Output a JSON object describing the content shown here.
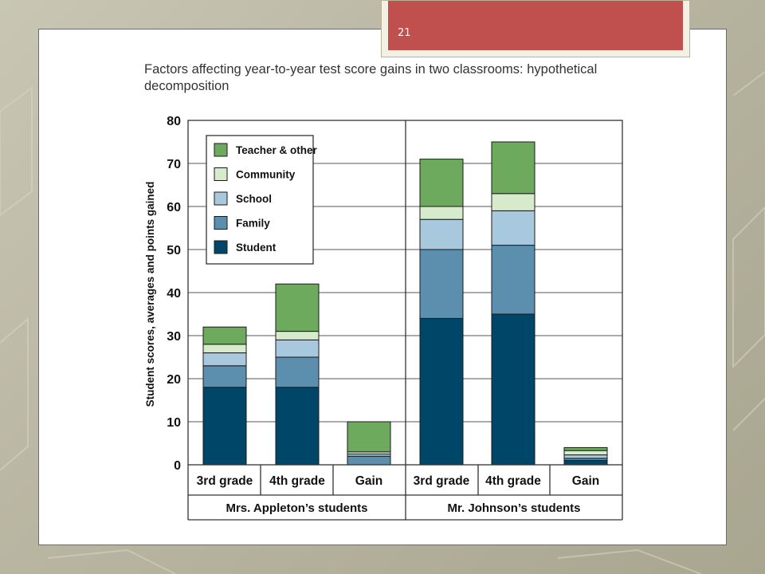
{
  "slide": {
    "page_number": "21"
  },
  "chart_data": {
    "type": "bar",
    "stacked": true,
    "title": "Factors affecting year-to-year test score gains in two classrooms: hypothetical decomposition",
    "ylabel": "Student scores, averages and points gained",
    "ylim": [
      0,
      80
    ],
    "yticks": [
      0,
      10,
      20,
      30,
      40,
      50,
      60,
      70,
      80
    ],
    "grid": true,
    "legend_position": "top-left",
    "categories": [
      "3rd grade",
      "4th grade",
      "Gain",
      "3rd grade",
      "4th grade",
      "Gain"
    ],
    "groups": [
      {
        "label": "Mrs. Appleton’s students",
        "categories": [
          "3rd grade",
          "4th grade",
          "Gain"
        ]
      },
      {
        "label": "Mr. Johnson’s students",
        "categories": [
          "3rd grade",
          "4th grade",
          "Gain"
        ]
      }
    ],
    "series": [
      {
        "name": "Student",
        "color": "#004669",
        "values": [
          18,
          18,
          0,
          34,
          35,
          1
        ]
      },
      {
        "name": "Family",
        "color": "#5b8fad",
        "values": [
          5,
          7,
          2,
          16,
          16,
          0.5
        ]
      },
      {
        "name": "School",
        "color": "#a8c8de",
        "values": [
          3,
          4,
          0.5,
          7,
          8,
          0.8
        ]
      },
      {
        "name": "Community",
        "color": "#d6ebcb",
        "values": [
          2,
          2,
          0.5,
          3,
          4,
          1
        ]
      },
      {
        "name": "Teacher & other",
        "color": "#6eaa5e",
        "values": [
          4,
          11,
          7,
          11,
          12,
          0.7
        ]
      }
    ],
    "legend_order": [
      "Teacher & other",
      "Community",
      "School",
      "Family",
      "Student"
    ]
  }
}
